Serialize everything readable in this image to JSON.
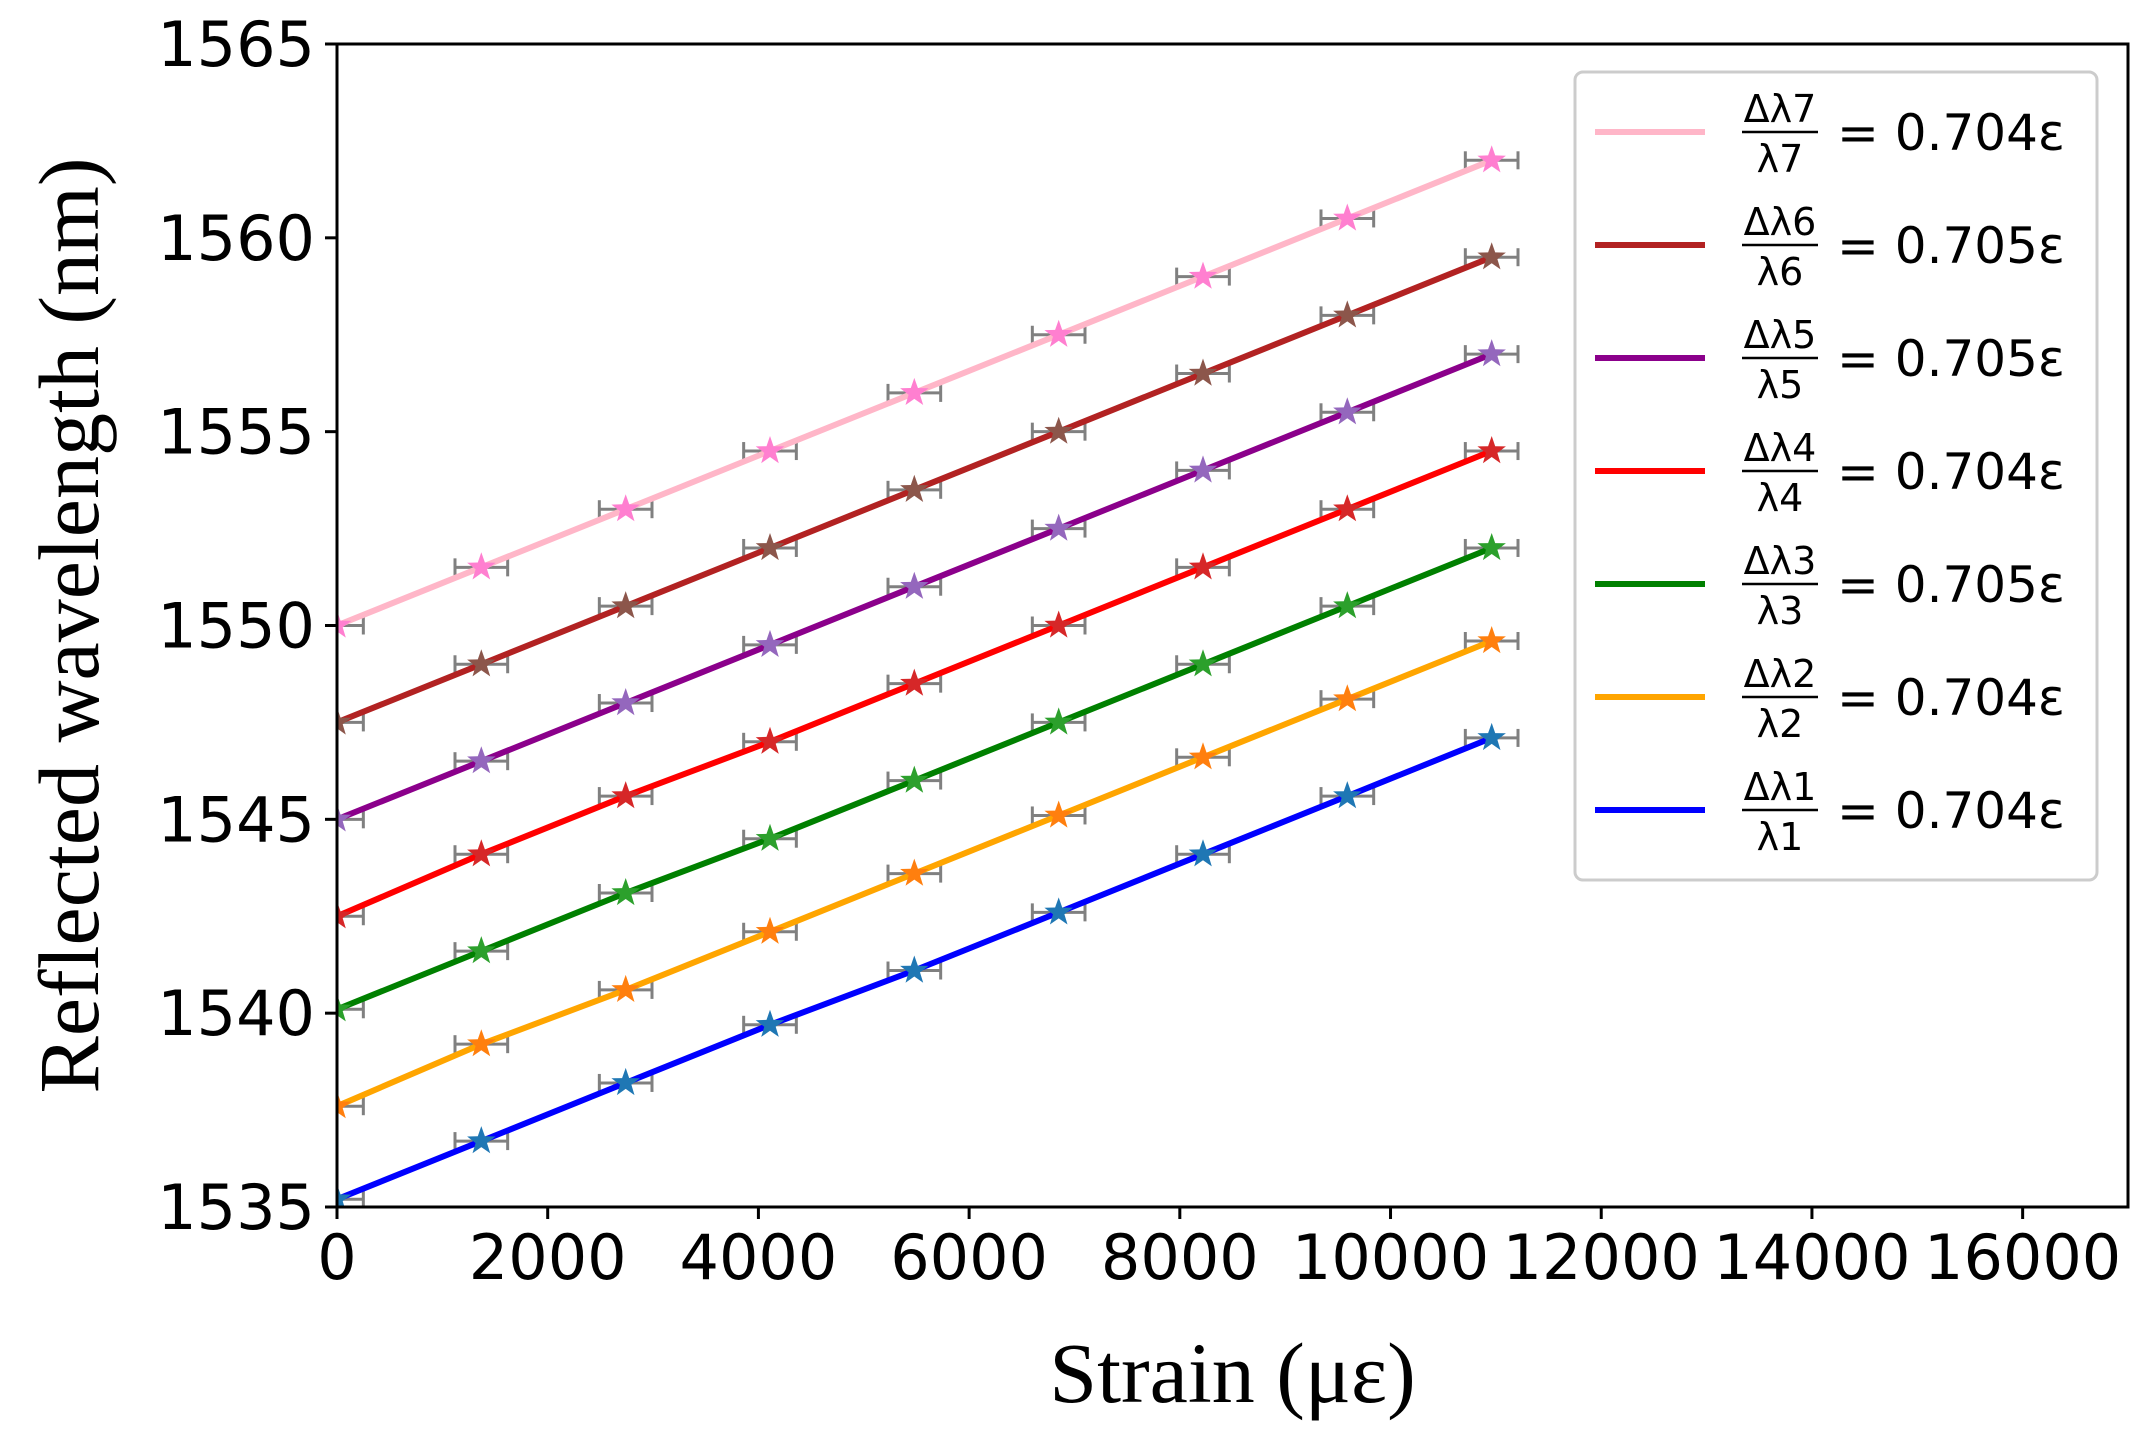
{
  "chart_data": {
    "type": "line",
    "title": "",
    "xlabel": "Strain (με)",
    "ylabel": "Reflected wavelength (nm)",
    "xlim": [
      0,
      17000
    ],
    "ylim": [
      1535,
      1565
    ],
    "x_ticks": [
      0,
      2000,
      4000,
      6000,
      8000,
      10000,
      12000,
      14000,
      16000
    ],
    "x_tick_labels": [
      "0",
      "2000",
      "4000",
      "6000",
      "8000",
      "10000",
      "12000",
      "14000",
      "16000"
    ],
    "y_ticks": [
      1535,
      1540,
      1545,
      1550,
      1555,
      1560,
      1565
    ],
    "y_tick_labels": [
      "1535",
      "1540",
      "1545",
      "1550",
      "1555",
      "1560",
      "1565"
    ],
    "x": [
      0,
      1370,
      2740,
      4110,
      5480,
      6850,
      8220,
      9590,
      10960
    ],
    "marker": "star",
    "x_error": 250,
    "legend_position": "top-right",
    "series": [
      {
        "name": "Δλ7/λ7 = 0.704ε",
        "numerator": "Δλ7",
        "denominator": "λ7",
        "equation": "= 0.704ε",
        "line_color": "#ffb6c8",
        "marker_color": "#ff7fd0",
        "values": [
          1550.0,
          1551.5,
          1553.0,
          1554.5,
          1556.0,
          1557.5,
          1559.0,
          1560.5,
          1562.0
        ]
      },
      {
        "name": "Δλ6/λ6 = 0.705ε",
        "numerator": "Δλ6",
        "denominator": "λ6",
        "equation": "= 0.705ε",
        "line_color": "#b22222",
        "marker_color": "#8c564b",
        "values": [
          1547.5,
          1549.0,
          1550.5,
          1552.0,
          1553.5,
          1555.0,
          1556.5,
          1558.0,
          1559.5
        ]
      },
      {
        "name": "Δλ5/λ5 = 0.705ε",
        "numerator": "Δλ5",
        "denominator": "λ5",
        "equation": "= 0.705ε",
        "line_color": "#8b008b",
        "marker_color": "#9467bd",
        "values": [
          1545.0,
          1546.5,
          1548.0,
          1549.5,
          1551.0,
          1552.5,
          1554.0,
          1555.5,
          1557.0
        ]
      },
      {
        "name": "Δλ4/λ4 = 0.704ε",
        "numerator": "Δλ4",
        "denominator": "λ4",
        "equation": "= 0.704ε",
        "line_color": "#ff0000",
        "marker_color": "#d62728",
        "values": [
          1542.5,
          1544.1,
          1545.6,
          1547.0,
          1548.5,
          1550.0,
          1551.5,
          1553.0,
          1554.5
        ]
      },
      {
        "name": "Δλ3/λ3 = 0.705ε",
        "numerator": "Δλ3",
        "denominator": "λ3",
        "equation": "= 0.705ε",
        "line_color": "#008000",
        "marker_color": "#2ca02c",
        "values": [
          1540.1,
          1541.6,
          1543.1,
          1544.5,
          1546.0,
          1547.5,
          1549.0,
          1550.5,
          1552.0
        ]
      },
      {
        "name": "Δλ2/λ2 = 0.704ε",
        "numerator": "Δλ2",
        "denominator": "λ2",
        "equation": "= 0.704ε",
        "line_color": "#ffa500",
        "marker_color": "#ff7f0e",
        "values": [
          1537.6,
          1539.2,
          1540.6,
          1542.1,
          1543.6,
          1545.1,
          1546.6,
          1548.1,
          1549.6
        ]
      },
      {
        "name": "Δλ1/λ1 = 0.704ε",
        "numerator": "Δλ1",
        "denominator": "λ1",
        "equation": "= 0.704ε",
        "line_color": "#0000ff",
        "marker_color": "#1f77b4",
        "values": [
          1535.2,
          1536.7,
          1538.2,
          1539.7,
          1541.1,
          1542.6,
          1544.1,
          1545.6,
          1547.1
        ]
      }
    ]
  }
}
